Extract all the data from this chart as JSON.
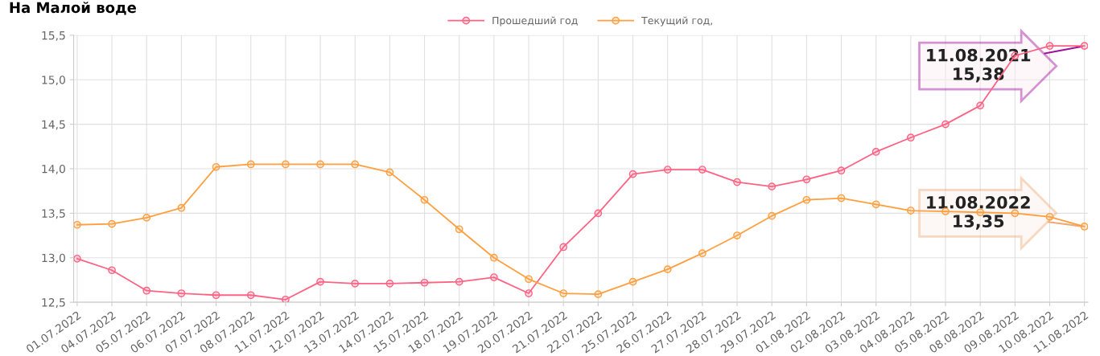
{
  "chart_data": {
    "type": "line",
    "title": "На Малой воде",
    "categories": [
      "01.07.2022",
      "04.07.2022",
      "05.07.2022",
      "06.07.2022",
      "07.07.2022",
      "08.07.2022",
      "11.07.2022",
      "12.07.2022",
      "13.07.2022",
      "14.07.2022",
      "15.07.2022",
      "18.07.2022",
      "19.07.2022",
      "20.07.2022",
      "21.07.2022",
      "22.07.2022",
      "25.07.2022",
      "26.07.2022",
      "27.07.2022",
      "28.07.2022",
      "29.07.2022",
      "01.08.2022",
      "02.08.2022",
      "03.08.2022",
      "04.08.2022",
      "05.08.2022",
      "08.08.2022",
      "09.08.2022",
      "10.08.2022",
      "11.08.2022"
    ],
    "series": [
      {
        "name": "Прошедший год",
        "color": "#ff6384",
        "values": [
          12.99,
          12.86,
          12.63,
          12.6,
          12.58,
          12.58,
          12.53,
          12.73,
          12.71,
          12.71,
          12.72,
          12.73,
          12.78,
          12.6,
          13.12,
          13.5,
          13.94,
          13.99,
          13.99,
          13.85,
          13.8,
          13.88,
          13.98,
          14.19,
          14.35,
          14.5,
          14.71,
          15.27,
          15.38,
          15.38
        ]
      },
      {
        "name": "Текущий год,",
        "color": "#ff9f40",
        "values": [
          13.37,
          13.38,
          13.45,
          13.56,
          14.02,
          14.05,
          14.05,
          14.05,
          14.05,
          13.96,
          13.65,
          13.32,
          13.0,
          12.76,
          12.6,
          12.59,
          12.73,
          12.87,
          13.05,
          13.25,
          13.47,
          13.65,
          13.67,
          13.6,
          13.53,
          13.52,
          13.51,
          13.5,
          13.46,
          13.35
        ]
      }
    ],
    "ylim": [
      12.5,
      15.5
    ],
    "yticks": [
      {
        "value": 12.5,
        "label": "12,5"
      },
      {
        "value": 13.0,
        "label": "13,0"
      },
      {
        "value": 13.5,
        "label": "13,5"
      },
      {
        "value": 14.0,
        "label": "14,0"
      },
      {
        "value": 14.5,
        "label": "14,5"
      },
      {
        "value": 15.0,
        "label": "15,0"
      },
      {
        "value": 15.5,
        "label": "15,5"
      }
    ],
    "annotations": [
      {
        "text": "11.08.2021\n15,38",
        "x": "11.08.2022",
        "y": 15.38
      },
      {
        "text": "11.08.2022\n13,35",
        "x": "11.08.2022",
        "y": 13.35
      }
    ],
    "grid": true,
    "legend": "top",
    "marker": "circle",
    "line_style": "solid"
  }
}
